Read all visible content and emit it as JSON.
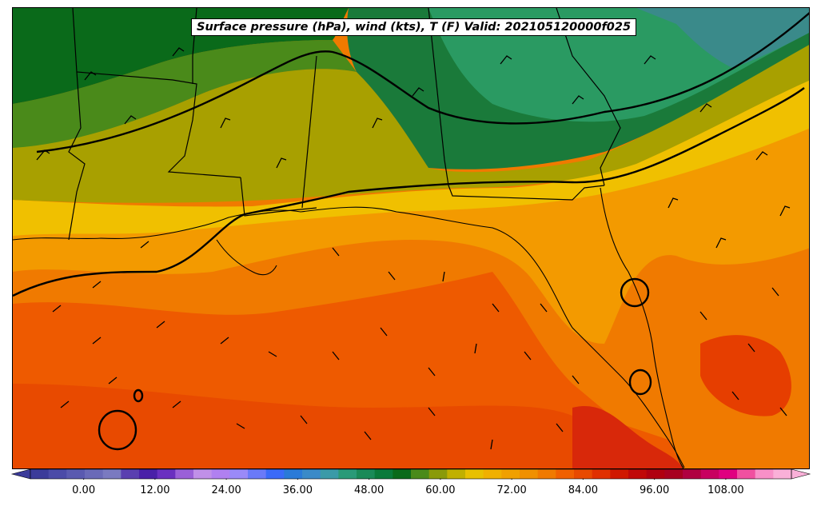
{
  "title": "Surface pressure (hPa), wind (kts), T (F) Valid: 202105120000f025",
  "colorbar": {
    "tick_labels": [
      "0.00",
      "12.00",
      "24.00",
      "36.00",
      "48.00",
      "60.00",
      "72.00",
      "84.00",
      "96.00",
      "108.00"
    ],
    "tick_values": [
      0,
      12,
      24,
      36,
      48,
      60,
      72,
      84,
      96,
      108
    ],
    "range": [
      -6,
      122
    ],
    "step": 3,
    "colors": [
      "#3b3b9a",
      "#4b4ba8",
      "#5a5ab0",
      "#6a6ab8",
      "#7a7ac0",
      "#5a3fb0",
      "#4a20a8",
      "#6a30c0",
      "#9a60d8",
      "#c090e8",
      "#b080f0",
      "#9a8af8",
      "#6a7af8",
      "#3a6af8",
      "#2a7ad8",
      "#3a8ac8",
      "#3a9aa8",
      "#2a9a78",
      "#1a8a58",
      "#0a7a3a",
      "#0a6a1a",
      "#4a8a1a",
      "#8a9a0a",
      "#c0b000",
      "#e8c000",
      "#f0b000",
      "#f0a000",
      "#f09000",
      "#f07a00",
      "#f06000",
      "#e84a00",
      "#e03000",
      "#d01800",
      "#c00808",
      "#b00010",
      "#a80020",
      "#b00040",
      "#c80060",
      "#e00080",
      "#f050a0",
      "#f890c8",
      "#fab0d8"
    ]
  }
}
